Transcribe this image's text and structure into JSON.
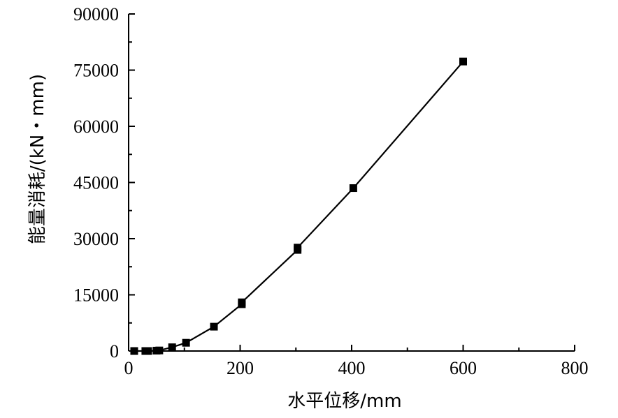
{
  "chart_data": {
    "type": "line",
    "xlabel": "水平位移/mm",
    "ylabel": "能量消耗/(kN・mm)",
    "xlim": [
      0,
      800
    ],
    "ylim": [
      0,
      90000
    ],
    "x_ticks": [
      0,
      200,
      400,
      600,
      800
    ],
    "y_ticks": [
      0,
      15000,
      30000,
      45000,
      60000,
      75000,
      90000
    ],
    "x_tick_labels": [
      "0",
      "200",
      "400",
      "600",
      "800"
    ],
    "y_tick_labels": [
      "0",
      "15000",
      "30000",
      "45000",
      "60000",
      "75000",
      "90000"
    ],
    "grid": false,
    "legend": "none",
    "series": [
      {
        "marker": "square",
        "color": "#000000",
        "points": [
          {
            "x": 10,
            "y": 0
          },
          {
            "x": 30,
            "y": 0
          },
          {
            "x": 35,
            "y": 0
          },
          {
            "x": 50,
            "y": 100
          },
          {
            "x": 55,
            "y": 150
          },
          {
            "x": 78,
            "y": 1000
          },
          {
            "x": 103,
            "y": 2200
          },
          {
            "x": 153,
            "y": 6500
          },
          {
            "x": 203,
            "y": 12500
          },
          {
            "x": 203,
            "y": 13000
          },
          {
            "x": 303,
            "y": 27000
          },
          {
            "x": 303,
            "y": 27600
          },
          {
            "x": 403,
            "y": 43500
          },
          {
            "x": 600,
            "y": 77300
          }
        ]
      }
    ]
  }
}
